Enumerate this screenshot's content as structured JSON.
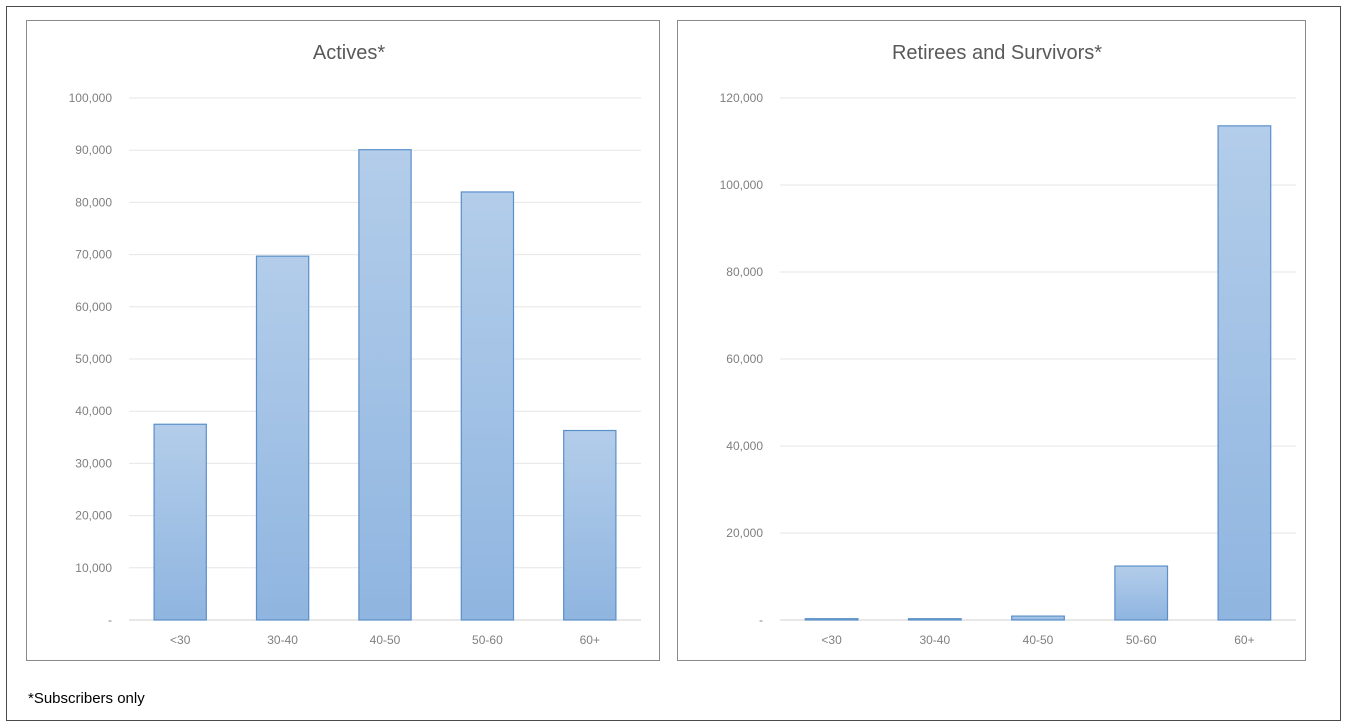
{
  "footnote": "*Subscribers only",
  "colors": {
    "bar_top": "#b3cdea",
    "bar_bottom": "#8fb5e0",
    "bar_border": "#5b8fc9"
  },
  "chart_data": [
    {
      "type": "bar",
      "title": "Actives*",
      "categories": [
        "<30",
        "30-40",
        "40-50",
        "50-60",
        "60+"
      ],
      "values": [
        37500,
        69700,
        90100,
        82000,
        36300
      ],
      "ylim": [
        0,
        100000
      ],
      "yticks": [
        0,
        10000,
        20000,
        30000,
        40000,
        50000,
        60000,
        70000,
        80000,
        90000,
        100000
      ],
      "ytick_labels": [
        "-",
        "10,000",
        "20,000",
        "30,000",
        "40,000",
        "50,000",
        "60,000",
        "70,000",
        "80,000",
        "90,000",
        "100,000"
      ],
      "grid": true,
      "legend": "none"
    },
    {
      "type": "bar",
      "title": "Retirees  and Survivors*",
      "categories": [
        "<30",
        "30-40",
        "40-50",
        "50-60",
        "60+"
      ],
      "values": [
        300,
        300,
        900,
        12400,
        113600
      ],
      "ylim": [
        0,
        120000
      ],
      "yticks": [
        0,
        20000,
        40000,
        60000,
        80000,
        100000,
        120000
      ],
      "ytick_labels": [
        "-",
        "20,000",
        "40,000",
        "60,000",
        "80,000",
        "100,000",
        "120,000"
      ],
      "grid": true,
      "legend": "none"
    }
  ]
}
